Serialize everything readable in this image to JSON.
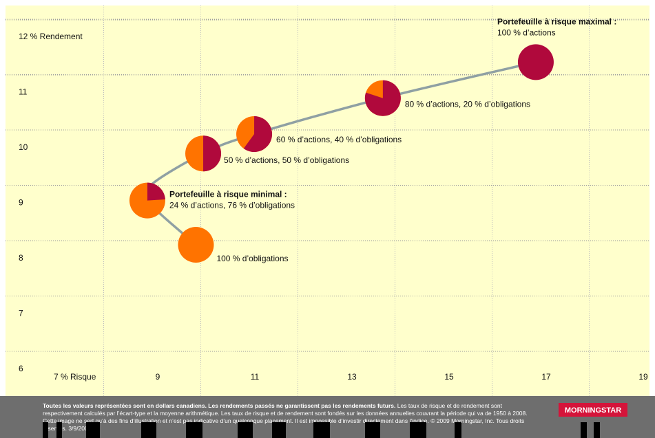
{
  "chart_data": {
    "type": "scatter",
    "xlabel": "% Risque",
    "ylabel": "% Rendement",
    "xlim": [
      6,
      19
    ],
    "ylim": [
      6,
      12
    ],
    "x_ticks": [
      "7",
      "9",
      "11",
      "13",
      "15",
      "17",
      "19"
    ],
    "y_ticks": [
      "6",
      "7",
      "8",
      "9",
      "10",
      "11",
      "12"
    ],
    "x_first_tick_label": "7 % Risque",
    "y_top_tick_label": "12 % Rendement",
    "grid": "dotted",
    "colors": {
      "stocks": "#B0093C",
      "bonds": "#FF7300",
      "frontier": "#8FA0A3",
      "background": "#FFFFCC"
    },
    "points": [
      {
        "x": 9.9,
        "y": 7.95,
        "stocks_pct": 0,
        "label": "100 % d’obligations",
        "title": ""
      },
      {
        "x": 8.9,
        "y": 8.75,
        "stocks_pct": 24,
        "label": "24 % d’actions, 76 % d’obligations",
        "title": "Portefeuille à risque minimal :"
      },
      {
        "x": 10.05,
        "y": 9.6,
        "stocks_pct": 50,
        "label": "50 % d’actions, 50 % d’obligations",
        "title": ""
      },
      {
        "x": 11.1,
        "y": 9.95,
        "stocks_pct": 60,
        "label": "60 % d’actions, 40 % d’obligations",
        "title": ""
      },
      {
        "x": 13.75,
        "y": 10.6,
        "stocks_pct": 80,
        "label": "80 % d’actions, 20 % d’obligations",
        "title": ""
      },
      {
        "x": 16.9,
        "y": 11.25,
        "stocks_pct": 100,
        "label": "100 % d’actions",
        "title": "Portefeuille à risque maximal :"
      }
    ],
    "frontier": [
      {
        "x": 9.9,
        "y": 7.95
      },
      {
        "x": 8.9,
        "y": 8.75
      },
      {
        "x": 9.0,
        "y": 9.05
      },
      {
        "x": 10.05,
        "y": 9.6
      },
      {
        "x": 11.1,
        "y": 9.95
      },
      {
        "x": 13.75,
        "y": 10.6
      },
      {
        "x": 16.9,
        "y": 11.25
      }
    ]
  },
  "footer": {
    "bold_text": "Toutes les valeurs représentées sont en dollars canadiens. Les rendements passés ne garantissent pas les rendements futurs.",
    "text": "Les taux de risque et de rendement sont respectivement calculés par l’écart-type et la moyenne arithmétique. Les taux de risque et de rendement sont fondés sur les données annuelles couvrant la période qui va de 1950 à 2008. Cette image ne sert qu’à des fins d’illustration et n’est pas indicative d’un quelconque placement. Il est impossible d’investir directement dans l’indice. © 2009 Morningstar, Inc. Tous droits réservés. 3/9/2009",
    "logo": "MORNINGSTAR"
  }
}
